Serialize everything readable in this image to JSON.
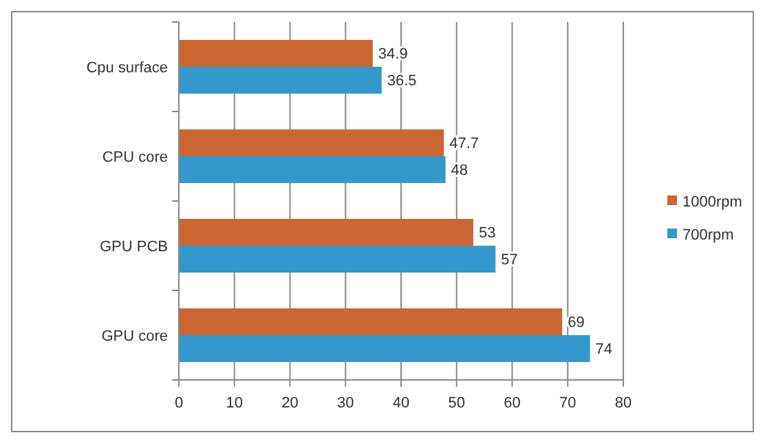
{
  "chart_data": {
    "type": "bar",
    "orientation": "horizontal",
    "categories": [
      "Cpu surface",
      "CPU core",
      "GPU PCB",
      "GPU core"
    ],
    "series": [
      {
        "name": "1000rpm",
        "color": "#cc6633",
        "values": [
          34.9,
          47.7,
          53,
          69
        ]
      },
      {
        "name": "700rpm",
        "color": "#3399cc",
        "values": [
          36.5,
          48,
          57,
          74
        ]
      }
    ],
    "xlim": [
      0,
      80
    ],
    "xticks": [
      0,
      10,
      20,
      30,
      40,
      50,
      60,
      70,
      80
    ],
    "grid": "x",
    "legend": "right",
    "data_labels": true
  }
}
